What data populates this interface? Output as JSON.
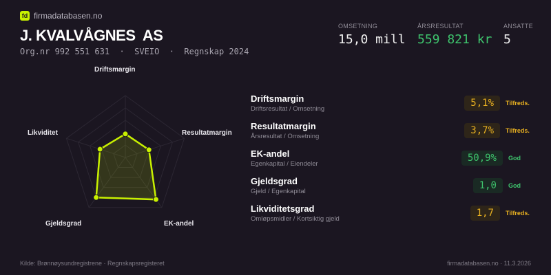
{
  "brand": {
    "logo": "fd",
    "name": "firmadatabasen.no"
  },
  "company": {
    "name": "J. KVALVÅGNES  AS",
    "subtitle": "Org.nr 992 551 631  ·  SVEIO  ·  Regnskap 2024"
  },
  "stats": [
    {
      "label": "OMSETNING",
      "value": "15,0 mill",
      "color": "#f2f2f2"
    },
    {
      "label": "ÅRSRESULTAT",
      "value": "559 821 kr",
      "color": "#3ec46d"
    },
    {
      "label": "ANSATTE",
      "value": "5",
      "color": "#f2f2f2"
    }
  ],
  "radar": {
    "axes": [
      "Driftsmargin",
      "Resultatmargin",
      "EK-andel",
      "Gjeldsgrad",
      "Likviditet"
    ],
    "scores": [
      0.38,
      0.4,
      0.84,
      0.8,
      0.43
    ],
    "color": "#c8f000"
  },
  "metrics": [
    {
      "name": "Driftsmargin",
      "desc": "Driftsresultat / Omsetning",
      "value": "5,1%",
      "rating": "Tilfreds.",
      "tone": "warn"
    },
    {
      "name": "Resultatmargin",
      "desc": "Årsresultat / Omsetning",
      "value": "3,7%",
      "rating": "Tilfreds.",
      "tone": "warn"
    },
    {
      "name": "EK-andel",
      "desc": "Egenkapital / Eiendeler",
      "value": "50,9%",
      "rating": "God",
      "tone": "good"
    },
    {
      "name": "Gjeldsgrad",
      "desc": "Gjeld / Egenkapital",
      "value": "1,0",
      "rating": "God",
      "tone": "good"
    },
    {
      "name": "Likviditetsgrad",
      "desc": "Omløpsmidler / Kortsiktig gjeld",
      "value": "1,7",
      "rating": "Tilfreds.",
      "tone": "warn"
    }
  ],
  "colors": {
    "warn": "#e8b020",
    "warn_bg": "#2e2519",
    "good": "#3ec46d",
    "good_bg": "#1a2a24"
  },
  "footer": {
    "source": "Kilde: Brønnøysundregistrene · Regnskapsregisteret",
    "site": "firmadatabasen.no · 11.3.2026"
  }
}
